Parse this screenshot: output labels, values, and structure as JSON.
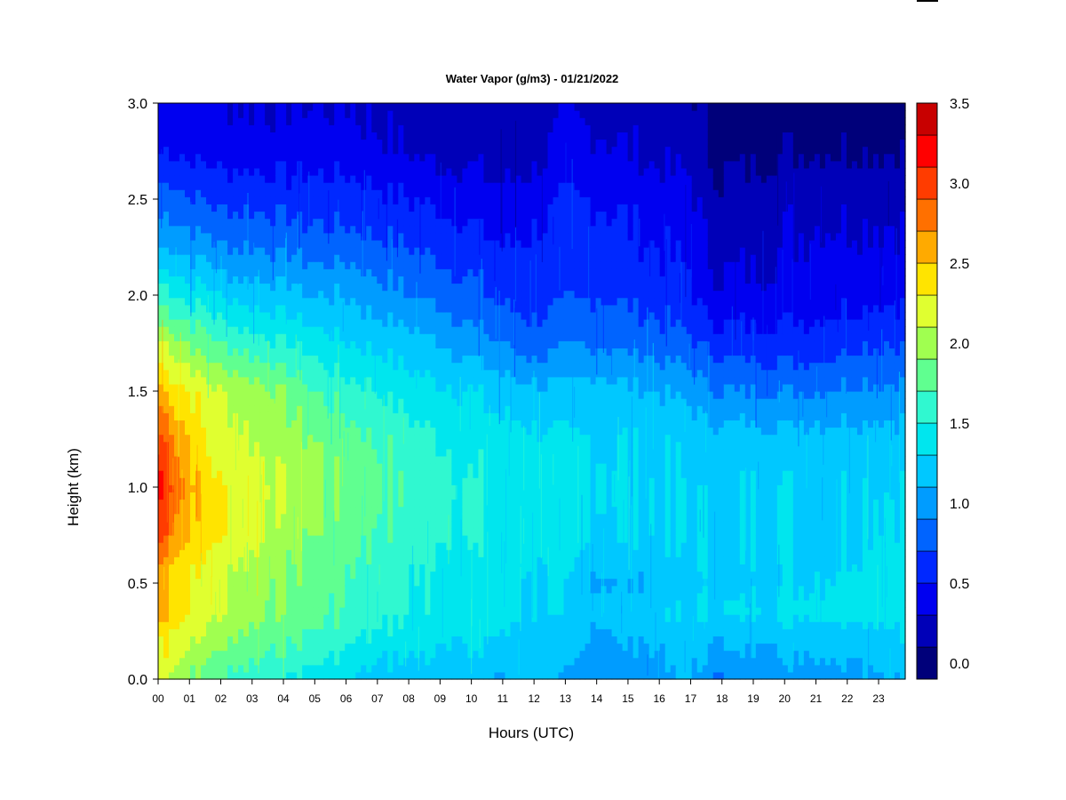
{
  "chart_data": {
    "type": "heatmap",
    "title": "Water Vapor (g/m3) - 01/21/2022",
    "xlabel": "Hours (UTC)",
    "ylabel": "Height (km)",
    "x_ticks": [
      "00",
      "01",
      "02",
      "03",
      "04",
      "05",
      "06",
      "07",
      "08",
      "09",
      "10",
      "11",
      "12",
      "13",
      "14",
      "15",
      "16",
      "17",
      "18",
      "19",
      "20",
      "21",
      "22",
      "23"
    ],
    "y_ticks": [
      "0.0",
      "0.5",
      "1.0",
      "1.5",
      "2.0",
      "2.5",
      "3.0"
    ],
    "xlim": [
      0,
      23.85
    ],
    "ylim": [
      0,
      3.0
    ],
    "colorbar": {
      "levels": [
        0.0,
        0.2,
        0.4,
        0.6,
        0.8,
        1.0,
        1.2,
        1.4,
        1.6,
        1.8,
        2.0,
        2.2,
        2.4,
        2.6,
        2.8,
        3.0,
        3.2,
        3.4,
        3.6
      ],
      "colors": [
        "#00007a",
        "#0000b8",
        "#0000f0",
        "#0028ff",
        "#0064ff",
        "#009cff",
        "#00c8ff",
        "#00e6ee",
        "#30f8d0",
        "#60ff90",
        "#a0ff50",
        "#e0ff30",
        "#ffe400",
        "#ffaa00",
        "#ff7000",
        "#ff3c00",
        "#ff0000",
        "#c80000",
        "#820000"
      ],
      "tick_labels": [
        "0.0",
        "0.5",
        "1.0",
        "1.5",
        "2.0",
        "2.5",
        "3.0",
        "3.5"
      ],
      "tick_values": [
        0.0,
        0.5,
        1.0,
        1.5,
        2.0,
        2.5,
        3.0,
        3.5
      ]
    },
    "hours": [
      0,
      0.25,
      0.5,
      1,
      1.5,
      2,
      3,
      4,
      5,
      6,
      7,
      8,
      9,
      10,
      11,
      12,
      13,
      14,
      15,
      16,
      17,
      17.5,
      18,
      19,
      20,
      21,
      22,
      23,
      23.85
    ],
    "heights_km": [
      0,
      0.25,
      0.35,
      0.5,
      0.75,
      1.0,
      1.25,
      1.5,
      1.75,
      2.0,
      2.25,
      2.5,
      2.75,
      3.0
    ],
    "values": [
      [
        2.2,
        2.4,
        2.8,
        2.7,
        3.1,
        3.3,
        3.1,
        2.7,
        2.2,
        1.7,
        1.2,
        0.9,
        0.6,
        0.5
      ],
      [
        2.3,
        2.5,
        2.7,
        2.6,
        3.0,
        3.2,
        3.0,
        2.6,
        2.2,
        1.7,
        1.2,
        0.9,
        0.6,
        0.5
      ],
      [
        2.2,
        2.4,
        2.6,
        2.5,
        2.8,
        3.0,
        2.8,
        2.5,
        2.1,
        1.6,
        1.2,
        0.9,
        0.6,
        0.5
      ],
      [
        2.0,
        2.3,
        2.4,
        2.4,
        2.6,
        2.7,
        2.6,
        2.4,
        2.0,
        1.5,
        1.1,
        0.8,
        0.55,
        0.45
      ],
      [
        1.9,
        2.2,
        2.3,
        2.3,
        2.5,
        2.5,
        2.4,
        2.3,
        1.9,
        1.5,
        1.1,
        0.8,
        0.55,
        0.45
      ],
      [
        1.8,
        2.1,
        2.2,
        2.2,
        2.4,
        2.4,
        2.3,
        2.2,
        1.8,
        1.4,
        1.0,
        0.75,
        0.5,
        0.4
      ],
      [
        1.7,
        2.0,
        2.1,
        2.1,
        2.3,
        2.3,
        2.2,
        2.1,
        1.7,
        1.3,
        1.0,
        0.75,
        0.5,
        0.4
      ],
      [
        1.6,
        1.9,
        1.95,
        2.0,
        2.1,
        2.2,
        2.1,
        2.0,
        1.6,
        1.3,
        0.95,
        0.7,
        0.5,
        0.4
      ],
      [
        1.5,
        1.8,
        1.85,
        1.9,
        2.0,
        2.0,
        2.0,
        1.8,
        1.5,
        1.2,
        0.9,
        0.7,
        0.5,
        0.4
      ],
      [
        1.45,
        1.7,
        1.8,
        1.8,
        1.9,
        1.95,
        1.9,
        1.7,
        1.4,
        1.2,
        0.9,
        0.7,
        0.5,
        0.4
      ],
      [
        1.3,
        1.6,
        1.7,
        1.7,
        1.8,
        1.85,
        1.8,
        1.6,
        1.35,
        1.1,
        0.85,
        0.65,
        0.45,
        0.35
      ],
      [
        1.3,
        1.5,
        1.6,
        1.6,
        1.7,
        1.75,
        1.7,
        1.5,
        1.3,
        1.0,
        0.8,
        0.6,
        0.4,
        0.3
      ],
      [
        1.3,
        1.5,
        1.55,
        1.55,
        1.65,
        1.7,
        1.6,
        1.45,
        1.2,
        0.95,
        0.75,
        0.55,
        0.35,
        0.3
      ],
      [
        1.3,
        1.45,
        1.5,
        1.5,
        1.6,
        1.6,
        1.55,
        1.4,
        1.1,
        0.85,
        0.7,
        0.5,
        0.35,
        0.3
      ],
      [
        1.15,
        1.4,
        1.45,
        1.45,
        1.55,
        1.55,
        1.5,
        1.3,
        1.0,
        0.75,
        0.6,
        0.45,
        0.3,
        0.25
      ],
      [
        1.3,
        1.35,
        1.4,
        1.4,
        1.5,
        1.5,
        1.45,
        1.25,
        0.9,
        0.7,
        0.65,
        0.5,
        0.35,
        0.3
      ],
      [
        1.1,
        1.3,
        1.35,
        1.35,
        1.45,
        1.45,
        1.4,
        1.25,
        0.95,
        0.75,
        0.7,
        0.6,
        0.45,
        0.35
      ],
      [
        1.05,
        1.2,
        1.3,
        1.2,
        1.4,
        1.45,
        1.4,
        1.3,
        1.0,
        0.8,
        0.7,
        0.6,
        0.45,
        0.35
      ],
      [
        1.05,
        1.25,
        1.3,
        1.2,
        1.4,
        1.4,
        1.4,
        1.25,
        0.95,
        0.75,
        0.65,
        0.55,
        0.4,
        0.3
      ],
      [
        1.1,
        1.3,
        1.35,
        1.25,
        1.4,
        1.4,
        1.35,
        1.2,
        0.9,
        0.7,
        0.6,
        0.5,
        0.35,
        0.3
      ],
      [
        1.2,
        1.35,
        1.4,
        1.35,
        1.4,
        1.4,
        1.35,
        1.15,
        0.85,
        0.65,
        0.55,
        0.45,
        0.35,
        0.25
      ],
      [
        1.1,
        1.3,
        1.4,
        1.35,
        1.4,
        1.35,
        1.3,
        1.05,
        0.75,
        0.5,
        0.4,
        0.3,
        0.2,
        0.15
      ],
      [
        1.0,
        1.25,
        1.4,
        1.3,
        1.35,
        1.35,
        1.3,
        1.0,
        0.7,
        0.45,
        0.35,
        0.25,
        0.15,
        0.1
      ],
      [
        1.05,
        1.3,
        1.45,
        1.35,
        1.4,
        1.4,
        1.3,
        1.0,
        0.7,
        0.45,
        0.35,
        0.3,
        0.15,
        0.1
      ],
      [
        1.1,
        1.35,
        1.45,
        1.4,
        1.4,
        1.4,
        1.3,
        1.0,
        0.7,
        0.5,
        0.4,
        0.35,
        0.2,
        0.1
      ],
      [
        1.15,
        1.35,
        1.5,
        1.4,
        1.4,
        1.4,
        1.3,
        1.0,
        0.7,
        0.5,
        0.45,
        0.35,
        0.2,
        0.1
      ],
      [
        1.15,
        1.35,
        1.5,
        1.45,
        1.4,
        1.4,
        1.3,
        1.05,
        0.75,
        0.55,
        0.45,
        0.35,
        0.2,
        0.1
      ],
      [
        1.2,
        1.4,
        1.55,
        1.5,
        1.45,
        1.4,
        1.3,
        1.05,
        0.8,
        0.55,
        0.45,
        0.35,
        0.2,
        0.1
      ],
      [
        1.25,
        1.4,
        1.55,
        1.5,
        1.45,
        1.4,
        1.3,
        1.05,
        0.8,
        0.55,
        0.45,
        0.35,
        0.2,
        0.1
      ]
    ],
    "grid": false,
    "legend": "colorbar-right"
  }
}
